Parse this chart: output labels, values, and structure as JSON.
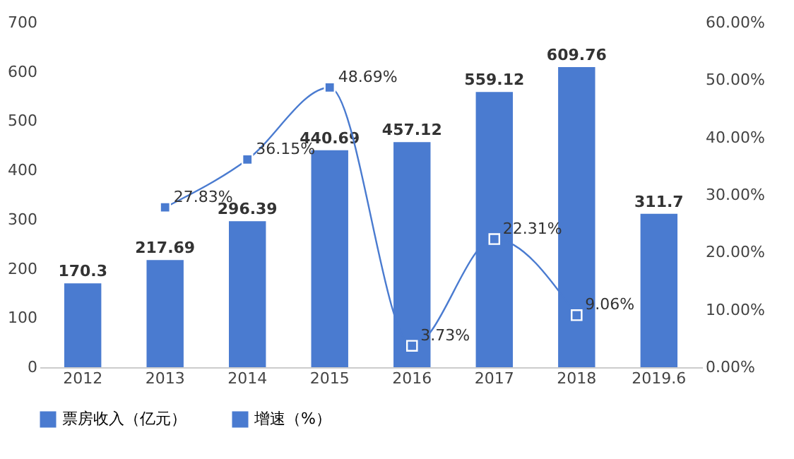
{
  "chart_data": {
    "type": "bar",
    "categories": [
      "2012",
      "2013",
      "2014",
      "2015",
      "2016",
      "2017",
      "2018",
      "2019.6"
    ],
    "series": [
      {
        "name": "票房收入（亿元）",
        "color": "#4a7bd0",
        "values": [
          170.3,
          217.69,
          296.39,
          440.69,
          457.12,
          559.12,
          609.76,
          311.7
        ],
        "value_labels": [
          "170.3",
          "217.69",
          "296.39",
          "440.69",
          "457.12",
          "559.12",
          "609.76",
          "311.7"
        ]
      },
      {
        "name": "增速（%）",
        "type": "line",
        "axis": "y2",
        "color": "#4a7bd0",
        "marker": "square",
        "values": [
          null,
          27.83,
          36.15,
          48.69,
          3.73,
          22.31,
          9.06,
          null
        ],
        "value_labels": [
          null,
          "27.83%",
          "36.15%",
          "48.69%",
          "3.73%",
          "22.31%",
          "9.06%",
          null
        ]
      }
    ],
    "ylim": [
      0,
      700
    ],
    "yticks": [
      0,
      100,
      200,
      300,
      400,
      500,
      600,
      700
    ],
    "y2lim": [
      0,
      60
    ],
    "y2ticks": [
      {
        "value": 0,
        "label": "0.00%"
      },
      {
        "value": 10,
        "label": "10.00%"
      },
      {
        "value": 20,
        "label": "20.00%"
      },
      {
        "value": 30,
        "label": "30.00%"
      },
      {
        "value": 40,
        "label": "40.00%"
      },
      {
        "value": 50,
        "label": "50.00%"
      },
      {
        "value": 60,
        "label": "60.00%"
      }
    ],
    "grid": false,
    "legend": "bottom"
  }
}
